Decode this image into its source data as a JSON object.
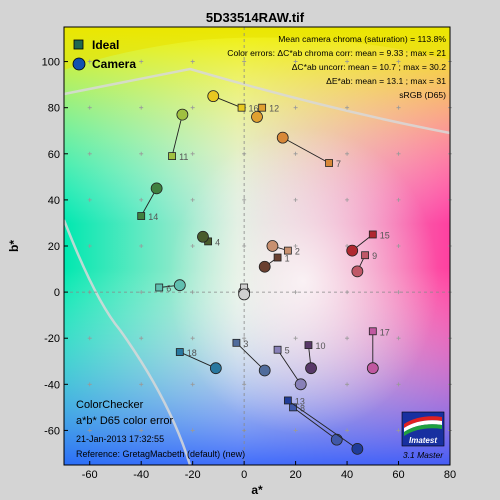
{
  "chart_data": {
    "type": "scatter",
    "title": "5D33514RAW.tif",
    "xlabel": "a*",
    "ylabel": "b*",
    "xlim": [
      -70,
      80
    ],
    "ylim": [
      -75,
      115
    ],
    "xticks": [
      -60,
      -40,
      -20,
      0,
      20,
      40,
      60,
      80
    ],
    "yticks": [
      -60,
      -40,
      -20,
      0,
      20,
      40,
      60,
      80,
      100
    ],
    "grid": true,
    "legend": {
      "position": "top-left",
      "entries": [
        "Ideal",
        "Camera"
      ]
    },
    "stats": [
      "Mean camera chroma (saturation) = 113.8%",
      "Color errors: ΔC*ab chroma corr:  mean = 9.33  ;  max = 21",
      "ΔC*ab uncorr:  mean = 10.7  ;  max = 30.2",
      "ΔE*ab:  mean = 13.1  ;  max = 31",
      "sRGB (D65)"
    ],
    "info": {
      "line1": "ColorChecker",
      "line2": "a*b* D65 color error",
      "line3": "21-Jan-2013 17:32:55",
      "line4": "Reference: GretagMacbeth (default) (new)"
    },
    "logo": {
      "text": "Imatest",
      "sub": "3.1  Master"
    },
    "patches": [
      {
        "id": "1",
        "ideal": [
          13,
          15
        ],
        "camera": [
          8,
          11
        ],
        "color": "#6a4030"
      },
      {
        "id": "2",
        "ideal": [
          17,
          18
        ],
        "camera": [
          11,
          20
        ],
        "color": "#c89070"
      },
      {
        "id": "3",
        "ideal": [
          -3,
          -22
        ],
        "camera": [
          8,
          -34
        ],
        "color": "#506c9c"
      },
      {
        "id": "4",
        "ideal": [
          -14,
          22
        ],
        "camera": [
          -16,
          24
        ],
        "color": "#485c2c"
      },
      {
        "id": "5",
        "ideal": [
          13,
          -25
        ],
        "camera": [
          22,
          -40
        ],
        "color": "#8880b8"
      },
      {
        "id": "6",
        "ideal": [
          -33,
          2
        ],
        "camera": [
          -25,
          3
        ],
        "color": "#60c0b0"
      },
      {
        "id": "7",
        "ideal": [
          33,
          56
        ],
        "camera": [
          15,
          67
        ],
        "color": "#d88838"
      },
      {
        "id": "8",
        "ideal": [
          19,
          -50
        ],
        "camera": [
          36,
          -64
        ],
        "color": "#4058a8"
      },
      {
        "id": "9",
        "ideal": [
          47,
          16
        ],
        "camera": [
          44,
          9
        ],
        "color": "#c05868"
      },
      {
        "id": "10",
        "ideal": [
          25,
          -23
        ],
        "camera": [
          26,
          -33
        ],
        "color": "#583868"
      },
      {
        "id": "11",
        "ideal": [
          -28,
          59
        ],
        "camera": [
          -24,
          77
        ],
        "color": "#a0c040"
      },
      {
        "id": "12",
        "ideal": [
          7,
          80
        ],
        "camera": [
          5,
          76
        ],
        "color": "#e0a030"
      },
      {
        "id": "13",
        "ideal": [
          17,
          -47
        ],
        "camera": [
          44,
          -68
        ],
        "color": "#203c98"
      },
      {
        "id": "14",
        "ideal": [
          -40,
          33
        ],
        "camera": [
          -34,
          45
        ],
        "color": "#408040"
      },
      {
        "id": "15",
        "ideal": [
          50,
          25
        ],
        "camera": [
          42,
          18
        ],
        "color": "#b02830"
      },
      {
        "id": "16",
        "ideal": [
          -1,
          80
        ],
        "camera": [
          -12,
          85
        ],
        "color": "#e8c820"
      },
      {
        "id": "17",
        "ideal": [
          50,
          -17
        ],
        "camera": [
          50,
          -33
        ],
        "color": "#c058a0"
      },
      {
        "id": "18",
        "ideal": [
          -25,
          -26
        ],
        "camera": [
          -11,
          -33
        ],
        "color": "#2878a0"
      },
      {
        "id": "W",
        "ideal": [
          0,
          -1
        ],
        "camera": [
          0,
          0
        ],
        "color": "#f0f0f0"
      },
      {
        "id": "N",
        "ideal": [
          0,
          2
        ],
        "camera": [
          0,
          -1
        ],
        "color": "#d0d0d0"
      }
    ]
  }
}
